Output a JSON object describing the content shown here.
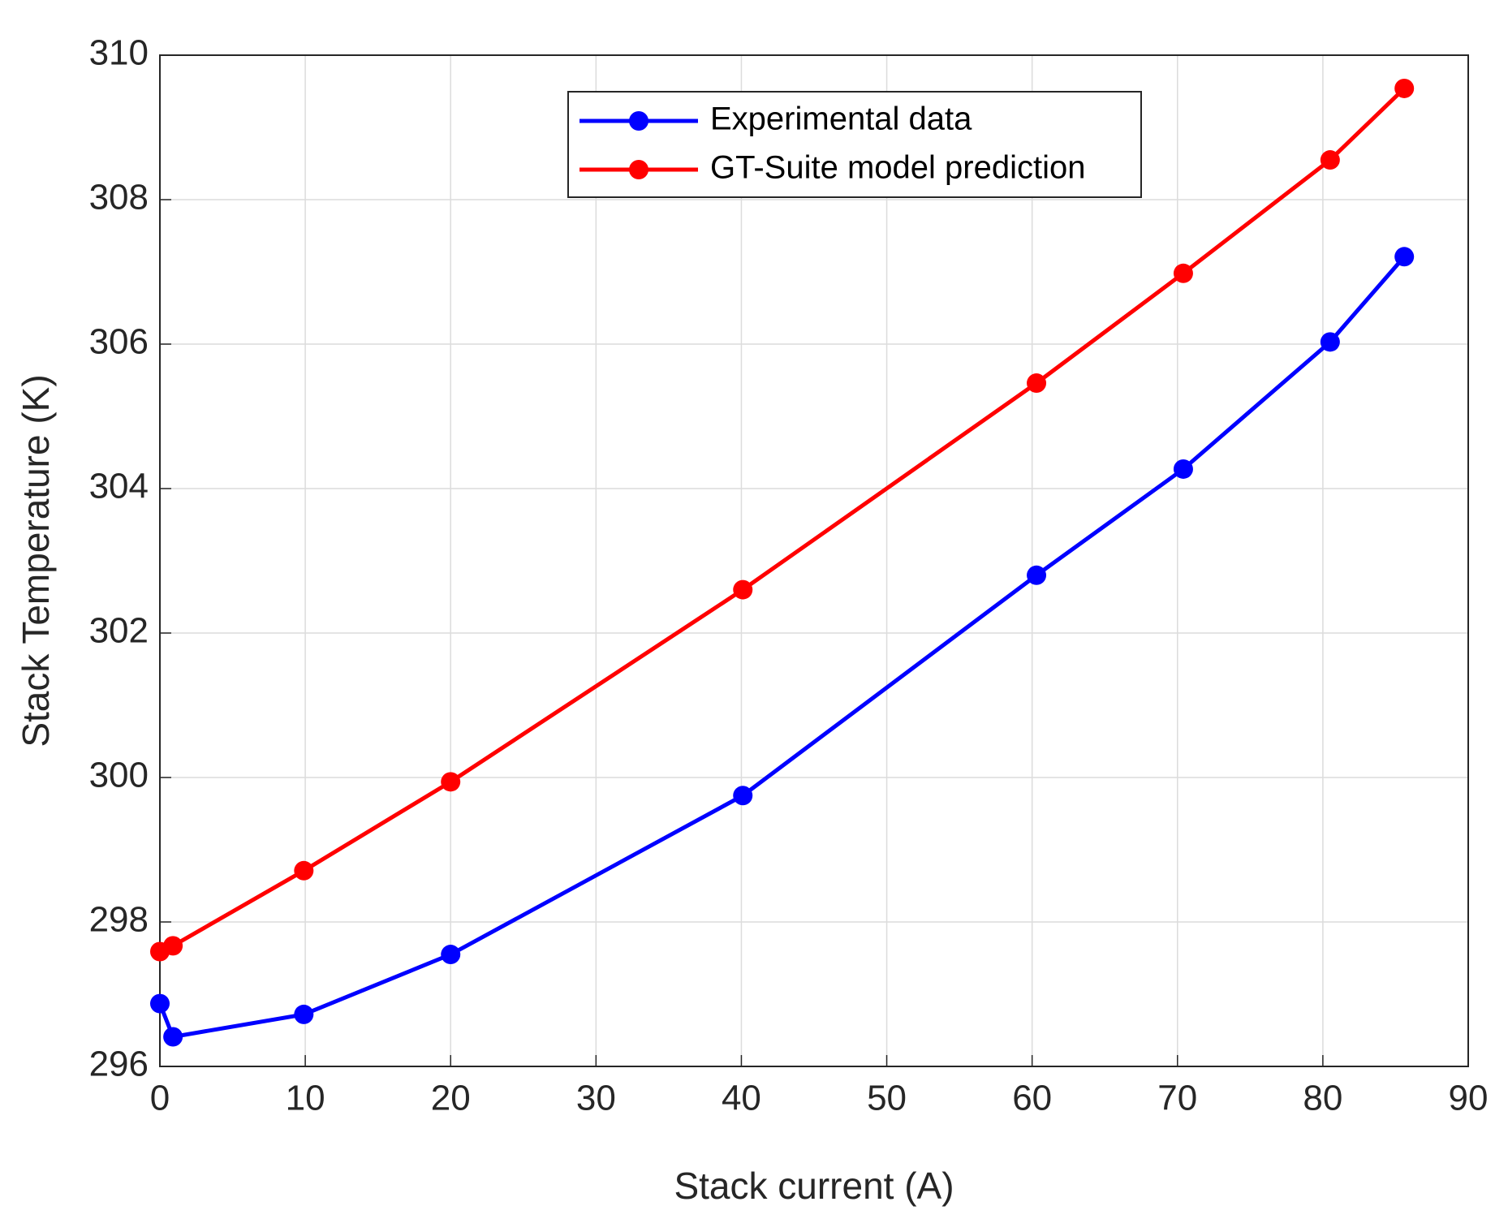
{
  "chart_data": {
    "type": "line",
    "x_label": "Stack current (A)",
    "y_label": "Stack Temperature (K)",
    "xlim": [
      0,
      90
    ],
    "xticks": [
      0,
      10,
      20,
      30,
      40,
      50,
      60,
      70,
      80,
      90
    ],
    "ylim": [
      296,
      310
    ],
    "yticks": [
      296,
      298,
      300,
      302,
      304,
      306,
      308,
      310
    ],
    "grid": true,
    "legend": "north",
    "x": [
      0,
      0.9,
      9.9,
      20,
      40.1,
      60.3,
      70.4,
      80.5,
      85.6
    ],
    "series": [
      {
        "name": "Experimental data",
        "color": "#0000ff",
        "values": [
          296.87,
          296.41,
          296.72,
          297.55,
          299.75,
          302.8,
          304.27,
          306.03,
          307.21
        ]
      },
      {
        "name": "GT-Suite model prediction",
        "color": "#ff0000",
        "values": [
          297.59,
          297.67,
          298.71,
          299.94,
          302.6,
          305.46,
          306.98,
          308.55,
          309.54
        ]
      }
    ]
  }
}
